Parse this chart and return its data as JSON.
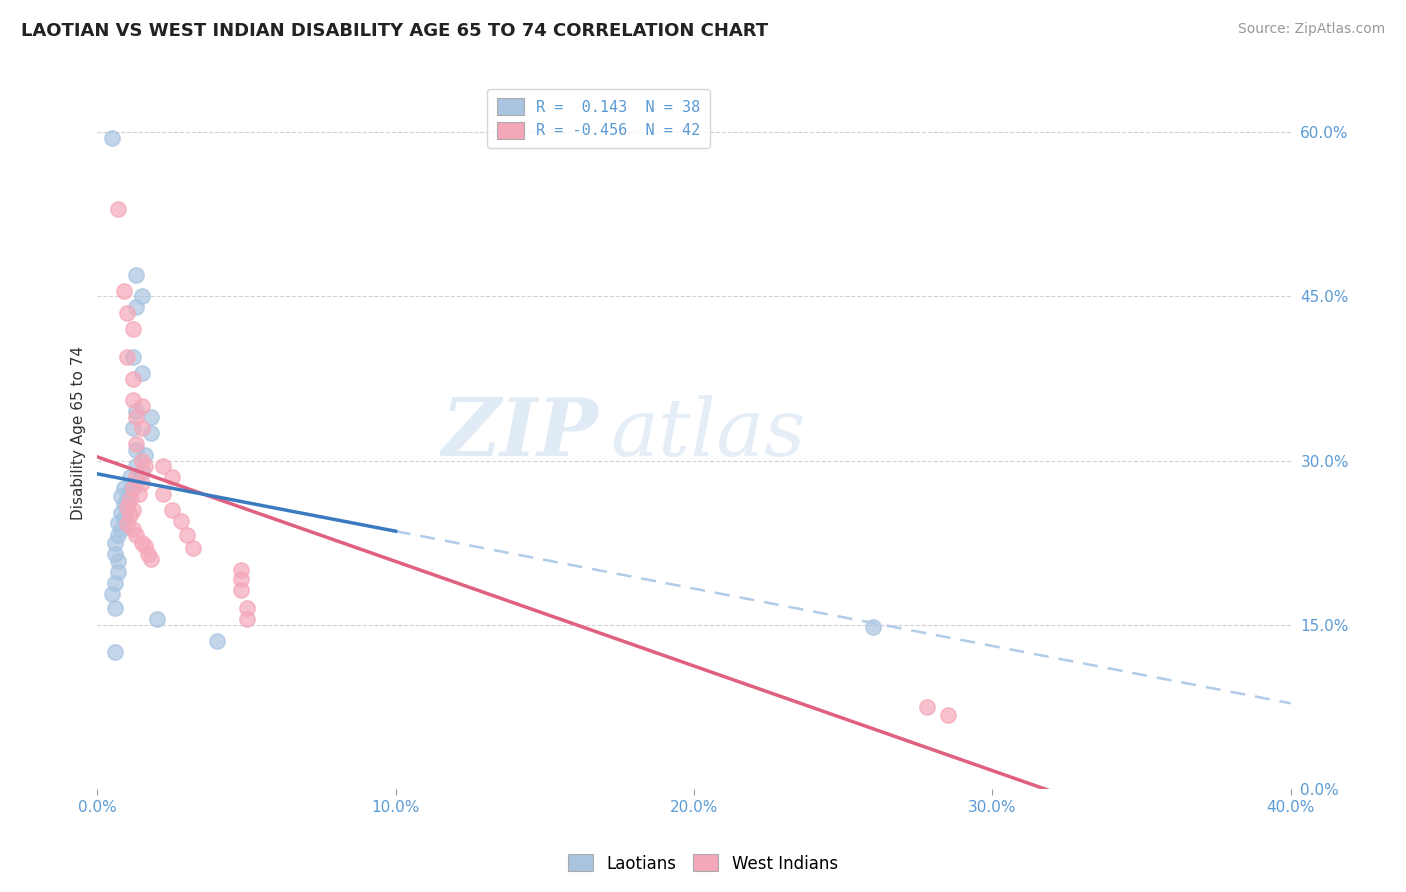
{
  "title": "LAOTIAN VS WEST INDIAN DISABILITY AGE 65 TO 74 CORRELATION CHART",
  "source": "Source: ZipAtlas.com",
  "ylabel": "Disability Age 65 to 74",
  "xlim": [
    0.0,
    0.4
  ],
  "ylim": [
    0.0,
    0.65
  ],
  "xtick_vals": [
    0.0,
    0.1,
    0.2,
    0.3,
    0.4
  ],
  "yticks_right": [
    0.0,
    0.15,
    0.3,
    0.45,
    0.6
  ],
  "ytick_right_labels": [
    "0.0%",
    "15.0%",
    "30.0%",
    "45.0%",
    "60.0%"
  ],
  "xtick_labels": [
    "0.0%",
    "10.0%",
    "20.0%",
    "30.0%",
    "40.0%"
  ],
  "laotian_color": "#a8c4e0",
  "west_indian_color": "#f4a7b9",
  "laotian_line_color": "#3a7abf",
  "west_indian_line_color": "#e06080",
  "laotian_dash_color": "#b0cce8",
  "background_color": "#ffffff",
  "grid_color": "#cccccc",
  "legend_r1": "R =  0.143  N = 38",
  "legend_r2": "R = -0.456  N = 42",
  "laotian_points": [
    [
      0.005,
      0.595
    ],
    [
      0.013,
      0.47
    ],
    [
      0.015,
      0.45
    ],
    [
      0.013,
      0.44
    ],
    [
      0.012,
      0.395
    ],
    [
      0.015,
      0.38
    ],
    [
      0.013,
      0.345
    ],
    [
      0.018,
      0.34
    ],
    [
      0.012,
      0.33
    ],
    [
      0.018,
      0.325
    ],
    [
      0.013,
      0.31
    ],
    [
      0.016,
      0.305
    ],
    [
      0.013,
      0.295
    ],
    [
      0.015,
      0.29
    ],
    [
      0.011,
      0.285
    ],
    [
      0.013,
      0.28
    ],
    [
      0.009,
      0.275
    ],
    [
      0.011,
      0.272
    ],
    [
      0.008,
      0.268
    ],
    [
      0.01,
      0.265
    ],
    [
      0.009,
      0.26
    ],
    [
      0.01,
      0.258
    ],
    [
      0.008,
      0.252
    ],
    [
      0.009,
      0.248
    ],
    [
      0.007,
      0.243
    ],
    [
      0.008,
      0.238
    ],
    [
      0.007,
      0.232
    ],
    [
      0.006,
      0.225
    ],
    [
      0.006,
      0.215
    ],
    [
      0.007,
      0.208
    ],
    [
      0.007,
      0.198
    ],
    [
      0.006,
      0.188
    ],
    [
      0.005,
      0.178
    ],
    [
      0.006,
      0.165
    ],
    [
      0.02,
      0.155
    ],
    [
      0.26,
      0.148
    ],
    [
      0.04,
      0.135
    ],
    [
      0.006,
      0.125
    ]
  ],
  "west_indian_points": [
    [
      0.007,
      0.53
    ],
    [
      0.009,
      0.455
    ],
    [
      0.01,
      0.435
    ],
    [
      0.012,
      0.42
    ],
    [
      0.01,
      0.395
    ],
    [
      0.012,
      0.375
    ],
    [
      0.012,
      0.355
    ],
    [
      0.015,
      0.35
    ],
    [
      0.013,
      0.34
    ],
    [
      0.015,
      0.33
    ],
    [
      0.013,
      0.315
    ],
    [
      0.015,
      0.3
    ],
    [
      0.016,
      0.295
    ],
    [
      0.013,
      0.285
    ],
    [
      0.015,
      0.28
    ],
    [
      0.012,
      0.275
    ],
    [
      0.014,
      0.27
    ],
    [
      0.011,
      0.265
    ],
    [
      0.01,
      0.258
    ],
    [
      0.012,
      0.255
    ],
    [
      0.011,
      0.25
    ],
    [
      0.01,
      0.242
    ],
    [
      0.012,
      0.238
    ],
    [
      0.013,
      0.232
    ],
    [
      0.015,
      0.225
    ],
    [
      0.016,
      0.222
    ],
    [
      0.017,
      0.215
    ],
    [
      0.018,
      0.21
    ],
    [
      0.022,
      0.295
    ],
    [
      0.025,
      0.285
    ],
    [
      0.022,
      0.27
    ],
    [
      0.025,
      0.255
    ],
    [
      0.028,
      0.245
    ],
    [
      0.03,
      0.232
    ],
    [
      0.032,
      0.22
    ],
    [
      0.048,
      0.2
    ],
    [
      0.048,
      0.192
    ],
    [
      0.048,
      0.182
    ],
    [
      0.05,
      0.165
    ],
    [
      0.05,
      0.155
    ],
    [
      0.278,
      0.075
    ],
    [
      0.285,
      0.068
    ]
  ]
}
